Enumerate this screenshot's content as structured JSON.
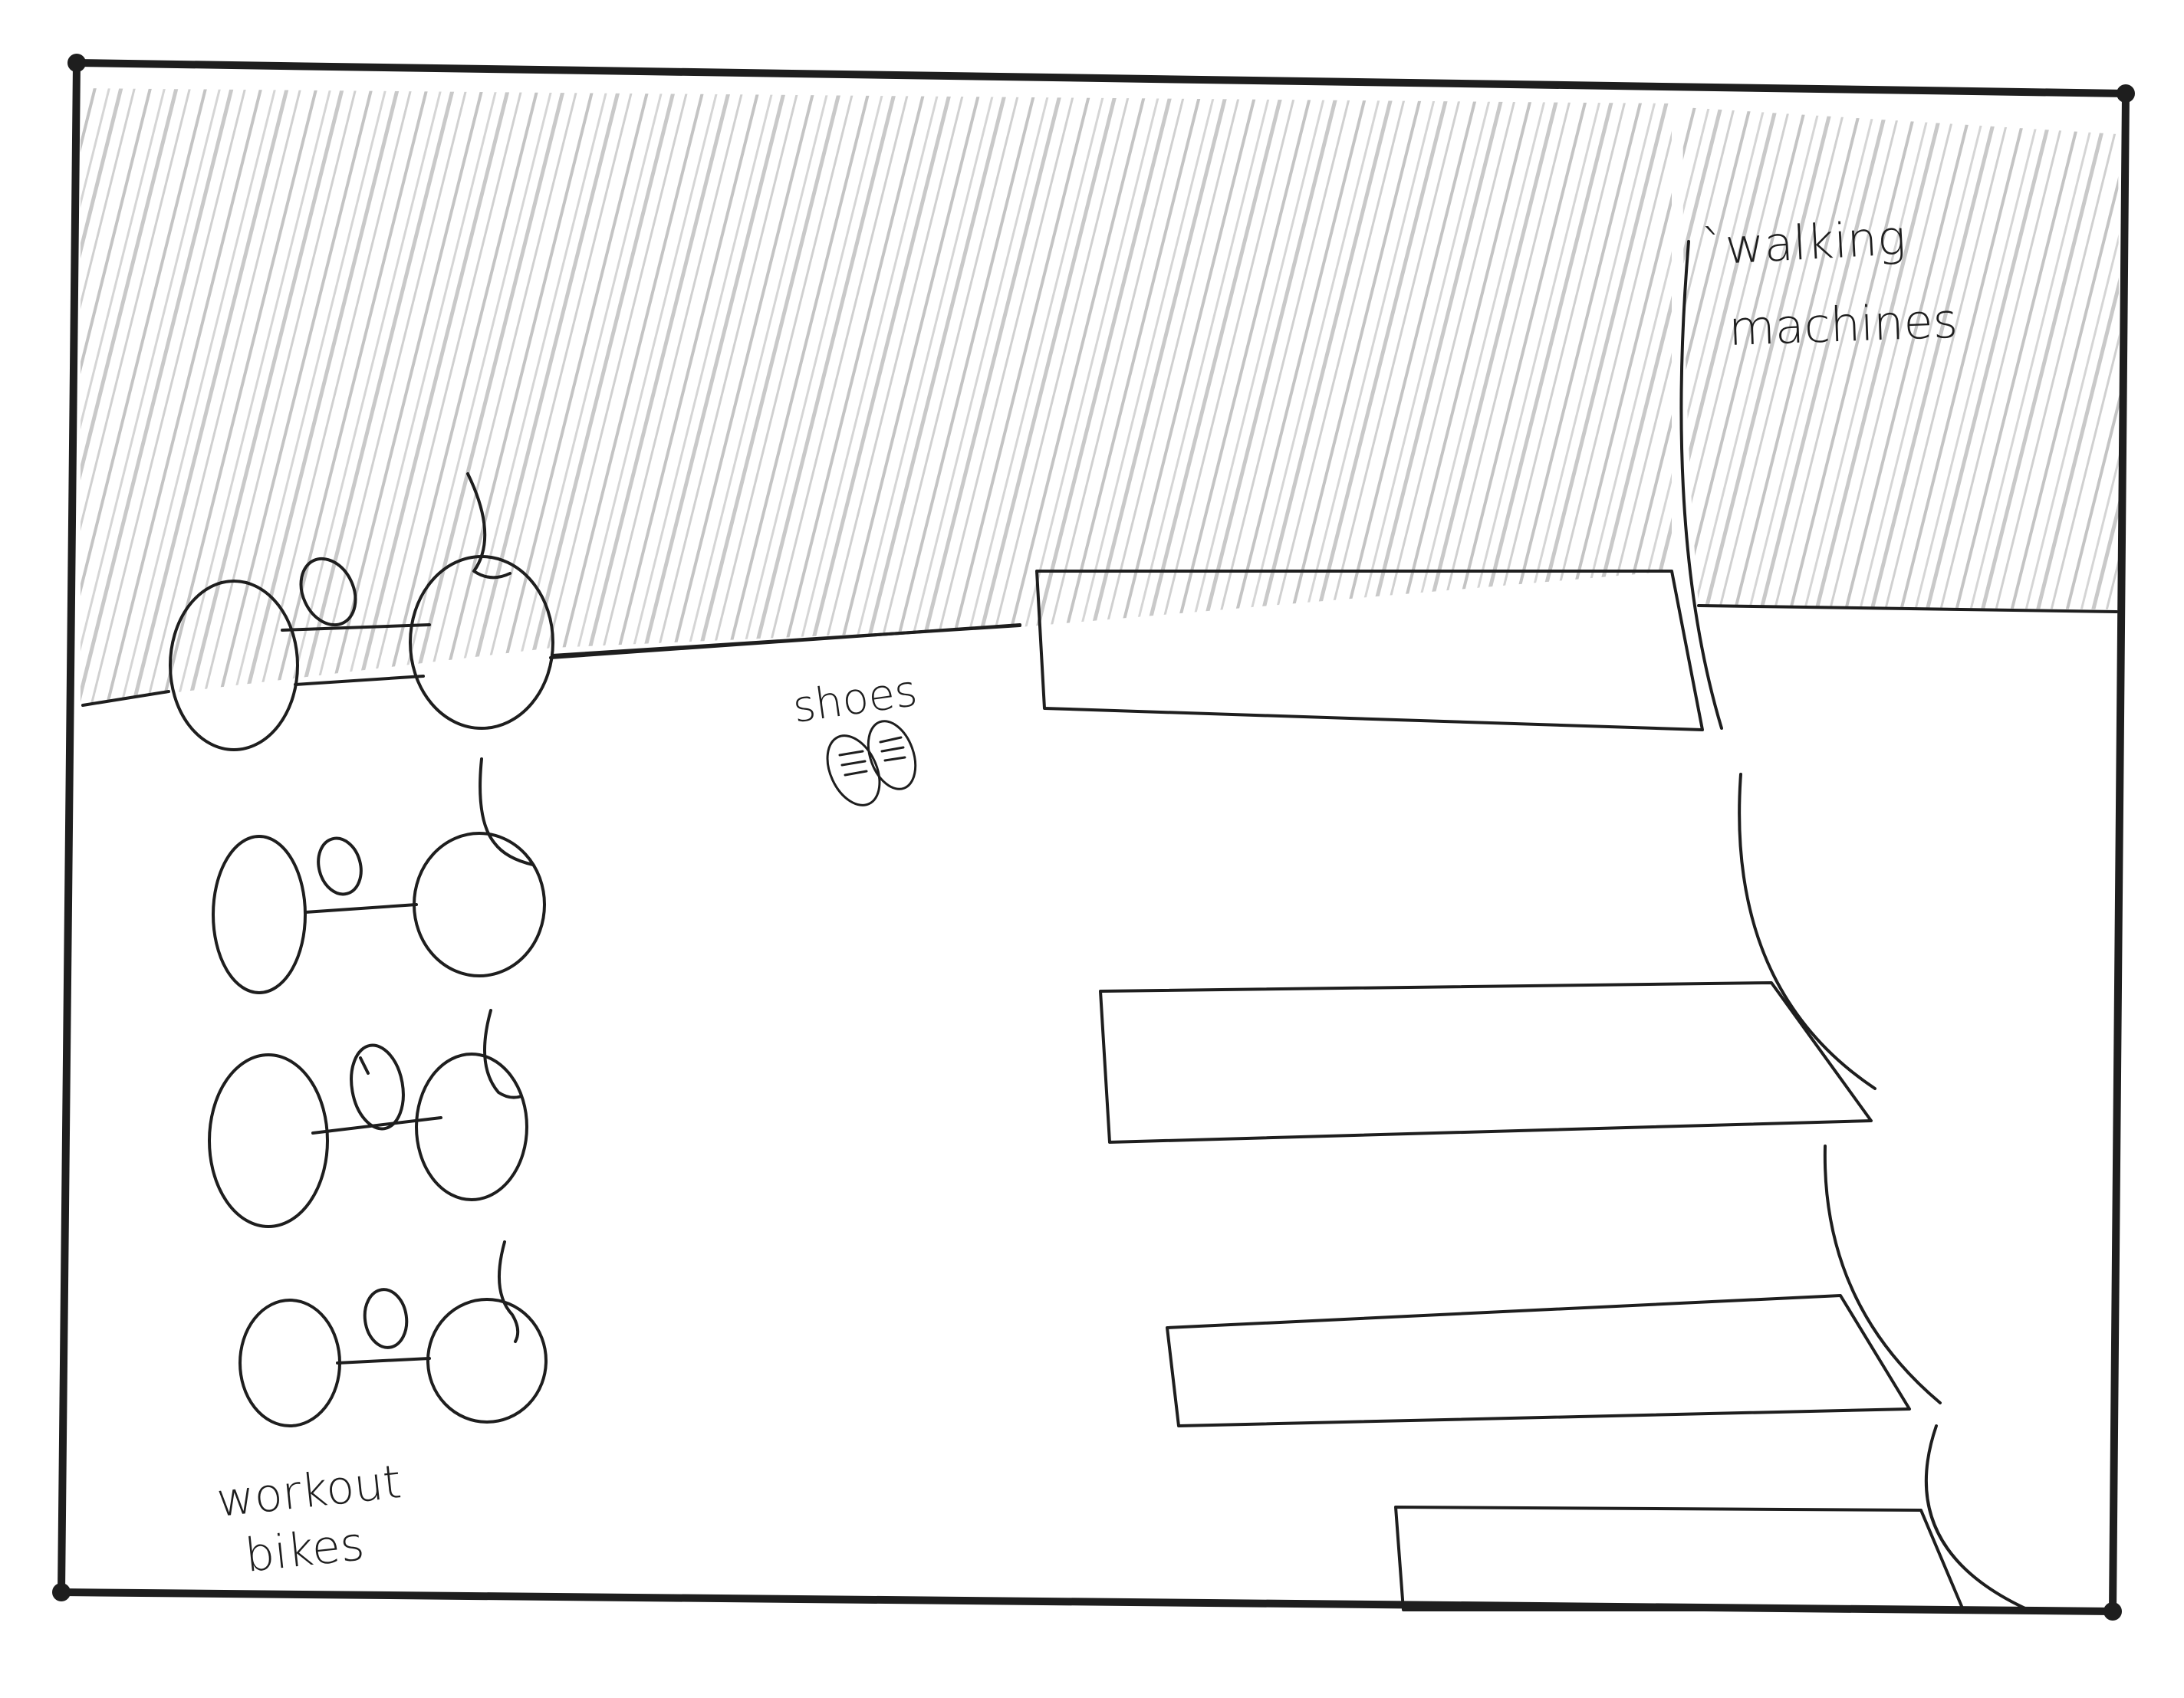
{
  "labels": {
    "walking_machines_line1": "`walking",
    "walking_machines_line2": "machines",
    "shoes": "shoes",
    "workout_bikes_line1": "workout",
    "workout_bikes_line2": "bikes"
  },
  "colors": {
    "ink": "#1e1e1e",
    "pencil_shading": "#9a9a9a",
    "paper": "#ffffff"
  }
}
